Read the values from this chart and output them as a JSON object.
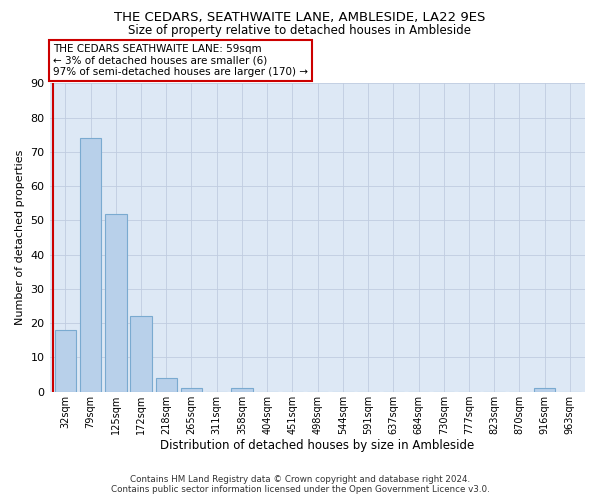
{
  "title": "THE CEDARS, SEATHWAITE LANE, AMBLESIDE, LA22 9ES",
  "subtitle": "Size of property relative to detached houses in Ambleside",
  "xlabel": "Distribution of detached houses by size in Ambleside",
  "ylabel": "Number of detached properties",
  "bar_color": "#b8d0ea",
  "bar_edge_color": "#7aaad0",
  "background_color": "#dde8f5",
  "categories": [
    "32sqm",
    "79sqm",
    "125sqm",
    "172sqm",
    "218sqm",
    "265sqm",
    "311sqm",
    "358sqm",
    "404sqm",
    "451sqm",
    "498sqm",
    "544sqm",
    "591sqm",
    "637sqm",
    "684sqm",
    "730sqm",
    "777sqm",
    "823sqm",
    "870sqm",
    "916sqm",
    "963sqm"
  ],
  "values": [
    18,
    74,
    52,
    22,
    4,
    1,
    0,
    1,
    0,
    0,
    0,
    0,
    0,
    0,
    0,
    0,
    0,
    0,
    0,
    1,
    0
  ],
  "ylim": [
    0,
    90
  ],
  "yticks": [
    0,
    10,
    20,
    30,
    40,
    50,
    60,
    70,
    80,
    90
  ],
  "vline_color": "#cc0000",
  "annotation_line1": "THE CEDARS SEATHWAITE LANE: 59sqm",
  "annotation_line2": "← 3% of detached houses are smaller (6)",
  "annotation_line3": "97% of semi-detached houses are larger (170) →",
  "footer_line1": "Contains HM Land Registry data © Crown copyright and database right 2024.",
  "footer_line2": "Contains public sector information licensed under the Open Government Licence v3.0.",
  "grid_color": "#c0cce0"
}
